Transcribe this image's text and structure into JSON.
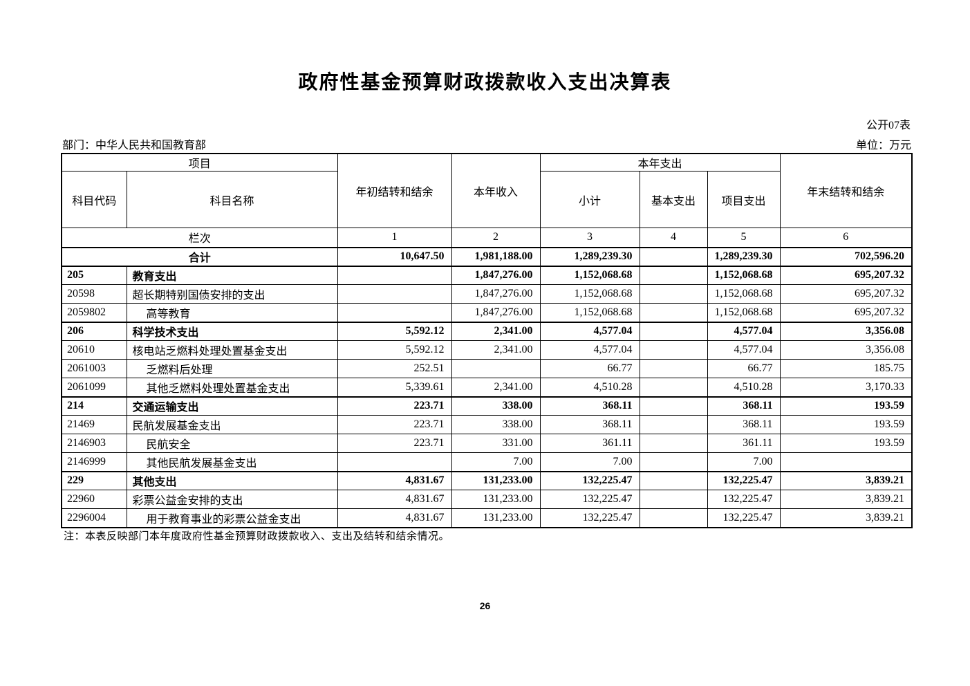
{
  "document": {
    "title": "政府性基金预算财政拨款收入支出决算表",
    "table_code_label": "公开07表",
    "department_label": "部门：中华人民共和国教育部",
    "unit_label": "单位：万元",
    "note": "注：本表反映部门本年度政府性基金预算财政拨款收入、支出及结转和结余情况。",
    "page_number": "26"
  },
  "table": {
    "header": {
      "project": "项目",
      "subject_code": "科目代码",
      "subject_name": "科目名称",
      "opening_balance": "年初结转和结余",
      "current_year_income": "本年收入",
      "current_year_expenditure": "本年支出",
      "subtotal": "小计",
      "basic_expenditure": "基本支出",
      "project_expenditure": "项目支出",
      "year_end_balance": "年末结转和结余",
      "column_index_label": "栏次",
      "column_numbers": [
        "1",
        "2",
        "3",
        "4",
        "5",
        "6"
      ]
    },
    "rows": [
      {
        "code": "",
        "name": "合计",
        "is_total": true,
        "bold": true,
        "indent": 0,
        "values": [
          "10,647.50",
          "1,981,188.00",
          "1,289,239.30",
          "",
          "1,289,239.30",
          "702,596.20"
        ]
      },
      {
        "code": "205",
        "name": "教育支出",
        "is_total": false,
        "bold": true,
        "indent": 0,
        "values": [
          "",
          "1,847,276.00",
          "1,152,068.68",
          "",
          "1,152,068.68",
          "695,207.32"
        ]
      },
      {
        "code": "20598",
        "name": "超长期特别国债安排的支出",
        "is_total": false,
        "bold": false,
        "indent": 0,
        "values": [
          "",
          "1,847,276.00",
          "1,152,068.68",
          "",
          "1,152,068.68",
          "695,207.32"
        ]
      },
      {
        "code": "2059802",
        "name": "高等教育",
        "is_total": false,
        "bold": false,
        "indent": 1,
        "values": [
          "",
          "1,847,276.00",
          "1,152,068.68",
          "",
          "1,152,068.68",
          "695,207.32"
        ]
      },
      {
        "code": "206",
        "name": "科学技术支出",
        "is_total": false,
        "bold": true,
        "indent": 0,
        "values": [
          "5,592.12",
          "2,341.00",
          "4,577.04",
          "",
          "4,577.04",
          "3,356.08"
        ]
      },
      {
        "code": "20610",
        "name": "核电站乏燃料处理处置基金支出",
        "is_total": false,
        "bold": false,
        "indent": 0,
        "values": [
          "5,592.12",
          "2,341.00",
          "4,577.04",
          "",
          "4,577.04",
          "3,356.08"
        ]
      },
      {
        "code": "2061003",
        "name": "乏燃料后处理",
        "is_total": false,
        "bold": false,
        "indent": 1,
        "values": [
          "252.51",
          "",
          "66.77",
          "",
          "66.77",
          "185.75"
        ]
      },
      {
        "code": "2061099",
        "name": "其他乏燃料处理处置基金支出",
        "is_total": false,
        "bold": false,
        "indent": 1,
        "values": [
          "5,339.61",
          "2,341.00",
          "4,510.28",
          "",
          "4,510.28",
          "3,170.33"
        ]
      },
      {
        "code": "214",
        "name": "交通运输支出",
        "is_total": false,
        "bold": true,
        "indent": 0,
        "values": [
          "223.71",
          "338.00",
          "368.11",
          "",
          "368.11",
          "193.59"
        ]
      },
      {
        "code": "21469",
        "name": "民航发展基金支出",
        "is_total": false,
        "bold": false,
        "indent": 0,
        "values": [
          "223.71",
          "338.00",
          "368.11",
          "",
          "368.11",
          "193.59"
        ]
      },
      {
        "code": "2146903",
        "name": "民航安全",
        "is_total": false,
        "bold": false,
        "indent": 1,
        "values": [
          "223.71",
          "331.00",
          "361.11",
          "",
          "361.11",
          "193.59"
        ]
      },
      {
        "code": "2146999",
        "name": "其他民航发展基金支出",
        "is_total": false,
        "bold": false,
        "indent": 1,
        "values": [
          "",
          "7.00",
          "7.00",
          "",
          "7.00",
          ""
        ]
      },
      {
        "code": "229",
        "name": "其他支出",
        "is_total": false,
        "bold": true,
        "indent": 0,
        "values": [
          "4,831.67",
          "131,233.00",
          "132,225.47",
          "",
          "132,225.47",
          "3,839.21"
        ]
      },
      {
        "code": "22960",
        "name": "彩票公益金安排的支出",
        "is_total": false,
        "bold": false,
        "indent": 0,
        "values": [
          "4,831.67",
          "131,233.00",
          "132,225.47",
          "",
          "132,225.47",
          "3,839.21"
        ]
      },
      {
        "code": "2296004",
        "name": "用于教育事业的彩票公益金支出",
        "is_total": false,
        "bold": false,
        "indent": 1,
        "values": [
          "4,831.67",
          "131,233.00",
          "132,225.47",
          "",
          "132,225.47",
          "3,839.21"
        ]
      }
    ]
  }
}
